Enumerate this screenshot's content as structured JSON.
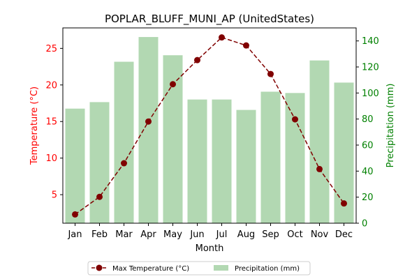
{
  "chart_data": {
    "type": "bar",
    "title": "POPLAR_BLUFF_MUNI_AP (UnitedStates)",
    "xlabel": "Month",
    "ylabel_left": "Temperature (°C)",
    "ylabel_right": "Precipitation (mm)",
    "categories": [
      "Jan",
      "Feb",
      "Mar",
      "Apr",
      "May",
      "Jun",
      "Jul",
      "Aug",
      "Sep",
      "Oct",
      "Nov",
      "Dec"
    ],
    "y_left": {
      "range": [
        1.1,
        27.8
      ],
      "ticks": [
        5,
        10,
        15,
        20,
        25
      ]
    },
    "y_right": {
      "range": [
        0,
        150
      ],
      "ticks": [
        0,
        20,
        40,
        60,
        80,
        100,
        120,
        140
      ]
    },
    "series": [
      {
        "name": "Max Temperature (°C)",
        "kind": "line",
        "axis": "left",
        "color": "#800000",
        "style": "dashed, circle markers",
        "values": [
          2.3,
          4.7,
          9.3,
          15.0,
          20.1,
          23.4,
          26.5,
          25.4,
          21.5,
          15.3,
          8.5,
          3.8
        ]
      },
      {
        "name": "Precipitation (mm)",
        "kind": "bar",
        "axis": "right",
        "color": "#b2d8b2",
        "values": [
          88,
          93,
          124,
          143,
          129,
          95,
          95,
          87,
          101,
          100,
          125,
          108
        ]
      }
    ],
    "colors": {
      "left_axis": "#ff0000",
      "right_axis": "#008000"
    },
    "grid": false,
    "legend": "bottom-center"
  }
}
